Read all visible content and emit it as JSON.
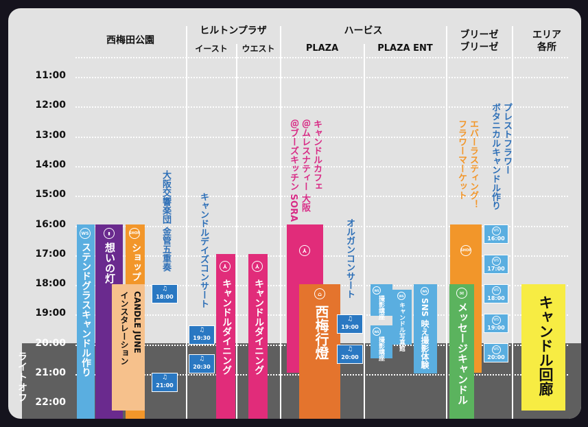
{
  "header": {
    "nishiumeda": "西梅田公園",
    "hilton": "ヒルトンプラザ",
    "hilton_east": "イースト",
    "hilton_west": "ウエスト",
    "herbis": "ハービス",
    "herbis_plaza": "PLAZA",
    "herbis_ent": "PLAZA ENT",
    "breeze_line1": "ブリーゼ",
    "breeze_line2": "ブリーゼ",
    "area_line1": "エリア",
    "area_line2": "各所"
  },
  "times": [
    "11:00",
    "12:00",
    "13:00",
    "14:00",
    "15:00",
    "16:00",
    "17:00",
    "18:00",
    "19:00",
    "20:00",
    "21:00",
    "22:00"
  ],
  "lights_off": "ライトオフ",
  "colors": {
    "board": "#e2e2e2",
    "dark_zone": "#5f5f5f",
    "light_blue": "#5aaee0",
    "purple": "#6a2a8e",
    "peach": "#f6c18c",
    "orange": "#f2962a",
    "pink": "#e12c7a",
    "dark_orange": "#e4742d",
    "green": "#5bb35e",
    "yellow": "#f7ec43",
    "blue_tag": "#2a78c2",
    "blue_text": "#2d6fb7",
    "magenta_text": "#d82c86"
  },
  "events": {
    "stained_glass": {
      "label": "ステンドグラスキャンドル作り",
      "icon": "WS"
    },
    "omoi_no_hi": {
      "label": "想いの灯",
      "icon": "candle-icon"
    },
    "shop": {
      "label": "ショップ",
      "icon": "SHOP"
    },
    "candle_june": {
      "label_1": "CANDLE JUNE",
      "label_2": "インスタレーション"
    },
    "osaka_brass": {
      "label": "大阪交響楽団 金管五重奏",
      "tag_1800": "18:00",
      "tag_2100": "21:00"
    },
    "candle_days_concert": {
      "label": "キャンドルデイズコンサート",
      "tag_1930": "19:30",
      "tag_2030": "20:30"
    },
    "candle_dining_east": {
      "label": "キャンドルダイニング",
      "icon": "dining-icon"
    },
    "candle_dining_west": {
      "label": "キャンドルダイニング",
      "icon": "dining-icon"
    },
    "candle_cafe": {
      "label_1": "キャンドルカフェ",
      "label_2": "＠ムレスナティー 大阪",
      "label_3": "＠ブーズキッチン SORA",
      "icon": "dining-icon"
    },
    "nishiume_lantern": {
      "label": "西梅行燈",
      "icon": "lantern-icon"
    },
    "organ_concert": {
      "label": "オルガンコンサート",
      "tag_1900": "19:00",
      "tag_2000": "20:00"
    },
    "ent_items": [
      {
        "name": "撮影講座",
        "icon": "WS"
      },
      {
        "name": "撮影講座",
        "icon": "WS"
      },
      {
        "name": "キャンドル写真館",
        "icon": "WS"
      },
      {
        "name": "SNS 映え撮影体験",
        "icon": "WS"
      }
    ],
    "everlasting": {
      "label_1": "エバーラスティング！",
      "label_2": "フラワーマーケット",
      "icon": "SHOP"
    },
    "preserved": {
      "label_1": "プレストフラワー",
      "label_2": "ボタニカルキャンドル作り",
      "icon": "WS",
      "times": [
        "16:00",
        "17:00",
        "18:00",
        "19:00",
        "20:00"
      ]
    },
    "message_candle": {
      "label": "メッセージキャンドル",
      "icon": "message-icon"
    },
    "candle_corridor": {
      "label": "キャンドル回廊"
    }
  }
}
